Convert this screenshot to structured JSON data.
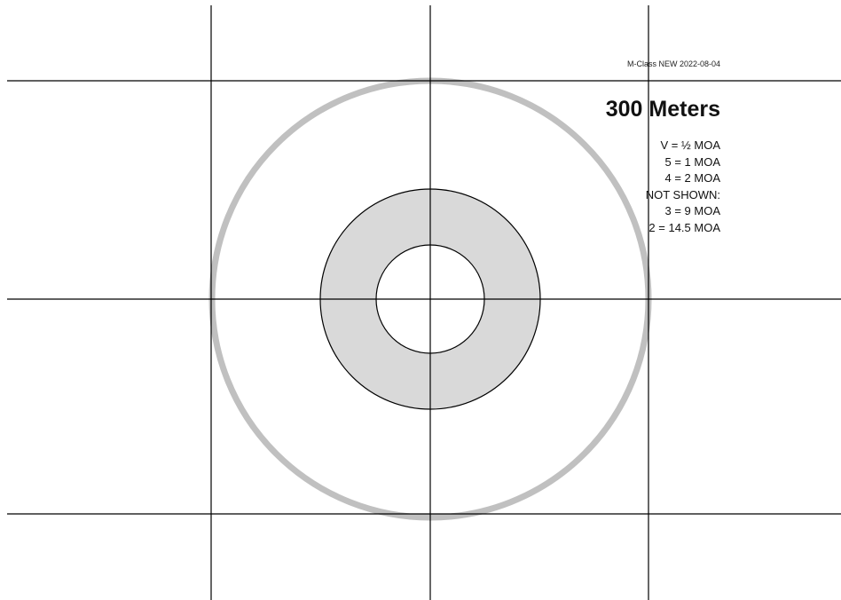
{
  "header": {
    "version": "M-Class NEW 2022-08-04",
    "distance": "300 Meters"
  },
  "legend": {
    "lines": [
      "V = ½ MOA",
      "5 = 1 MOA",
      "4 = 2 MOA",
      "NOT SHOWN:",
      "3 = 9 MOA",
      "2 = 14.5 MOA"
    ]
  },
  "colors": {
    "background": "#ffffff",
    "grid_line": "#000000",
    "ring_outline": "#000000",
    "scoring_band_fill": "#d9d9d9",
    "outer_ring": "#c0c0c0"
  }
}
